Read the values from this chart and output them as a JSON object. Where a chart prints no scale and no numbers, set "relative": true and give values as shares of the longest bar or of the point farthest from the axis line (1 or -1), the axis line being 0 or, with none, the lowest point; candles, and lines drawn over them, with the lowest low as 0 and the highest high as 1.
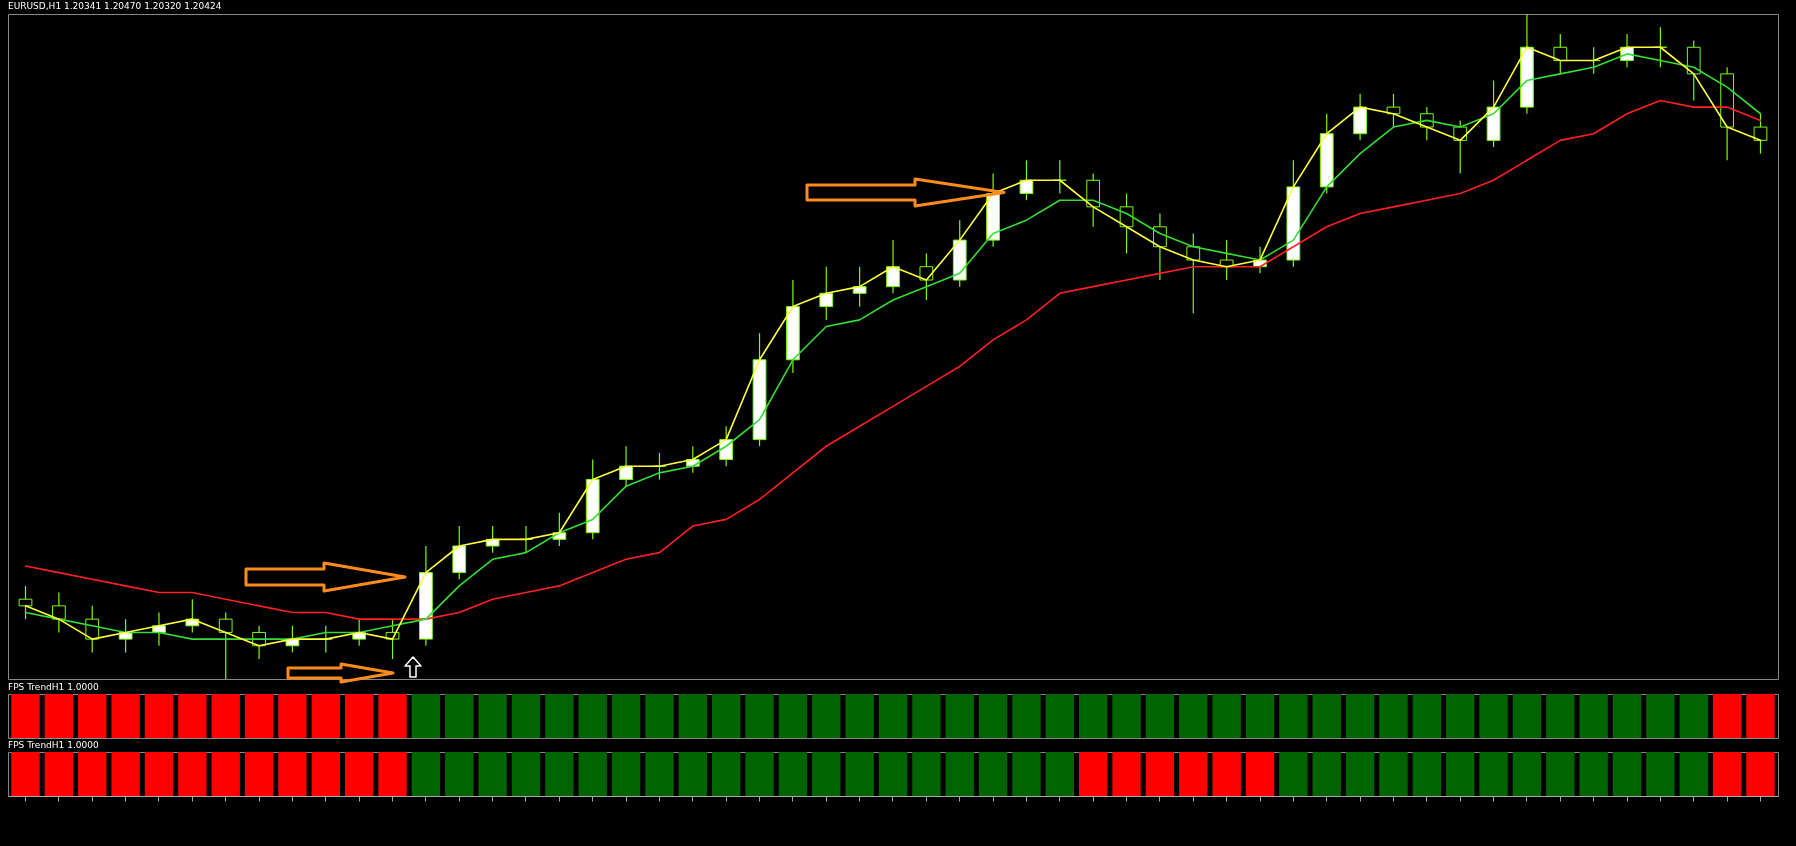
{
  "chart_data": [
    {
      "type": "candlestick",
      "title": "EURUSD,H1  1.20341 1.20470 1.20320 1.20424",
      "relative": true,
      "color": "#7cfc00",
      "categories": [
        null,
        null,
        null,
        null,
        null,
        null,
        null,
        null,
        null,
        null,
        null,
        null,
        null,
        null,
        null,
        null,
        null,
        null,
        null,
        null,
        null,
        null,
        null,
        null,
        null,
        null,
        null,
        null,
        null,
        null,
        null,
        null,
        null,
        null,
        null,
        null,
        null,
        null,
        null,
        null,
        null,
        null,
        null,
        null,
        null,
        null,
        null,
        null,
        null,
        null,
        null,
        null,
        null
      ],
      "ohlc": [
        [
          0.12,
          0.14,
          0.09,
          0.11
        ],
        [
          0.11,
          0.13,
          0.07,
          0.09
        ],
        [
          0.09,
          0.11,
          0.04,
          0.06
        ],
        [
          0.06,
          0.09,
          0.04,
          0.07
        ],
        [
          0.07,
          0.1,
          0.05,
          0.08
        ],
        [
          0.08,
          0.12,
          0.07,
          0.09
        ],
        [
          0.09,
          0.1,
          0.0,
          0.07
        ],
        [
          0.07,
          0.08,
          0.03,
          0.05
        ],
        [
          0.05,
          0.08,
          0.04,
          0.06
        ],
        [
          0.06,
          0.08,
          0.04,
          0.06
        ],
        [
          0.06,
          0.09,
          0.05,
          0.07
        ],
        [
          0.07,
          0.09,
          0.03,
          0.06
        ],
        [
          0.06,
          0.2,
          0.05,
          0.16
        ],
        [
          0.16,
          0.23,
          0.15,
          0.2
        ],
        [
          0.2,
          0.23,
          0.19,
          0.21
        ],
        [
          0.21,
          0.23,
          0.19,
          0.21
        ],
        [
          0.21,
          0.25,
          0.2,
          0.22
        ],
        [
          0.22,
          0.33,
          0.21,
          0.3
        ],
        [
          0.3,
          0.35,
          0.29,
          0.32
        ],
        [
          0.32,
          0.34,
          0.3,
          0.32
        ],
        [
          0.32,
          0.35,
          0.31,
          0.33
        ],
        [
          0.33,
          0.38,
          0.32,
          0.36
        ],
        [
          0.36,
          0.52,
          0.35,
          0.48
        ],
        [
          0.48,
          0.6,
          0.46,
          0.56
        ],
        [
          0.56,
          0.62,
          0.54,
          0.58
        ],
        [
          0.58,
          0.62,
          0.56,
          0.59
        ],
        [
          0.59,
          0.66,
          0.58,
          0.62
        ],
        [
          0.62,
          0.64,
          0.57,
          0.6
        ],
        [
          0.6,
          0.69,
          0.59,
          0.66
        ],
        [
          0.66,
          0.76,
          0.65,
          0.73
        ],
        [
          0.73,
          0.78,
          0.72,
          0.75
        ],
        [
          0.75,
          0.78,
          0.73,
          0.75
        ],
        [
          0.75,
          0.76,
          0.68,
          0.71
        ],
        [
          0.71,
          0.73,
          0.64,
          0.68
        ],
        [
          0.68,
          0.7,
          0.6,
          0.65
        ],
        [
          0.65,
          0.67,
          0.55,
          0.63
        ],
        [
          0.63,
          0.66,
          0.6,
          0.62
        ],
        [
          0.62,
          0.65,
          0.61,
          0.63
        ],
        [
          0.63,
          0.78,
          0.62,
          0.74
        ],
        [
          0.74,
          0.85,
          0.73,
          0.82
        ],
        [
          0.82,
          0.88,
          0.81,
          0.86
        ],
        [
          0.86,
          0.88,
          0.83,
          0.85
        ],
        [
          0.85,
          0.86,
          0.81,
          0.83
        ],
        [
          0.83,
          0.84,
          0.76,
          0.81
        ],
        [
          0.81,
          0.9,
          0.8,
          0.86
        ],
        [
          0.86,
          1.0,
          0.85,
          0.95
        ],
        [
          0.95,
          0.97,
          0.91,
          0.93
        ],
        [
          0.93,
          0.95,
          0.91,
          0.93
        ],
        [
          0.93,
          0.97,
          0.92,
          0.95
        ],
        [
          0.95,
          0.98,
          0.92,
          0.95
        ],
        [
          0.95,
          0.96,
          0.87,
          0.91
        ],
        [
          0.91,
          0.92,
          0.78,
          0.83
        ],
        [
          0.83,
          0.85,
          0.79,
          0.81
        ]
      ],
      "series": [
        {
          "type": "line",
          "color": "#ff2020",
          "values": [
            0.17,
            0.16,
            0.15,
            0.14,
            0.13,
            0.13,
            0.12,
            0.11,
            0.1,
            0.1,
            0.09,
            0.09,
            0.09,
            0.1,
            0.12,
            0.13,
            0.14,
            0.16,
            0.18,
            0.19,
            0.23,
            0.24,
            0.27,
            0.31,
            0.35,
            0.38,
            0.41,
            0.44,
            0.47,
            0.51,
            0.54,
            0.58,
            0.59,
            0.6,
            0.61,
            0.62,
            0.62,
            0.62,
            0.65,
            0.68,
            0.7,
            0.71,
            0.72,
            0.73,
            0.75,
            0.78,
            0.81,
            0.82,
            0.85,
            0.87,
            0.86,
            0.86,
            0.84
          ]
        },
        {
          "type": "line",
          "color": "#33dd33",
          "values": [
            0.1,
            0.09,
            0.08,
            0.07,
            0.07,
            0.06,
            0.06,
            0.06,
            0.06,
            0.07,
            0.07,
            0.08,
            0.09,
            0.14,
            0.18,
            0.19,
            0.22,
            0.24,
            0.29,
            0.31,
            0.32,
            0.35,
            0.39,
            0.48,
            0.53,
            0.54,
            0.57,
            0.59,
            0.61,
            0.67,
            0.69,
            0.72,
            0.72,
            0.7,
            0.67,
            0.65,
            0.64,
            0.63,
            0.66,
            0.74,
            0.79,
            0.83,
            0.84,
            0.83,
            0.85,
            0.9,
            0.91,
            0.92,
            0.94,
            0.93,
            0.92,
            0.89,
            0.85
          ]
        },
        {
          "type": "line",
          "color": "#ffff40",
          "values": [
            0.11,
            0.09,
            0.06,
            0.07,
            0.08,
            0.09,
            0.07,
            0.05,
            0.06,
            0.06,
            0.07,
            0.06,
            0.16,
            0.2,
            0.21,
            0.21,
            0.22,
            0.3,
            0.32,
            0.32,
            0.33,
            0.36,
            0.48,
            0.56,
            0.58,
            0.59,
            0.62,
            0.6,
            0.66,
            0.73,
            0.75,
            0.75,
            0.71,
            0.68,
            0.65,
            0.63,
            0.62,
            0.63,
            0.74,
            0.82,
            0.86,
            0.85,
            0.83,
            0.81,
            0.86,
            0.95,
            0.93,
            0.93,
            0.95,
            0.95,
            0.91,
            0.83,
            0.81
          ]
        }
      ]
    },
    {
      "type": "bar",
      "title": "FPS TrendH1 1.0000",
      "relative": true,
      "categories": [
        null,
        null,
        null,
        null,
        null,
        null,
        null,
        null,
        null,
        null,
        null,
        null,
        null,
        null,
        null,
        null,
        null,
        null,
        null,
        null,
        null,
        null,
        null,
        null,
        null,
        null,
        null,
        null,
        null,
        null,
        null,
        null,
        null,
        null,
        null,
        null,
        null,
        null,
        null,
        null,
        null,
        null,
        null,
        null,
        null,
        null,
        null,
        null,
        null,
        null,
        null,
        null,
        null
      ],
      "values": [
        1,
        1,
        1,
        1,
        1,
        1,
        1,
        1,
        1,
        1,
        1,
        1,
        1,
        1,
        1,
        1,
        1,
        1,
        1,
        1,
        1,
        1,
        1,
        1,
        1,
        1,
        1,
        1,
        1,
        1,
        1,
        1,
        1,
        1,
        1,
        1,
        1,
        1,
        1,
        1,
        1,
        1,
        1,
        1,
        1,
        1,
        1,
        1,
        1,
        1,
        1,
        1,
        1
      ],
      "colors": [
        "#ff0000",
        "#ff0000",
        "#ff0000",
        "#ff0000",
        "#ff0000",
        "#ff0000",
        "#ff0000",
        "#ff0000",
        "#ff0000",
        "#ff0000",
        "#ff0000",
        "#ff0000",
        "#006400",
        "#006400",
        "#006400",
        "#006400",
        "#006400",
        "#006400",
        "#006400",
        "#006400",
        "#006400",
        "#006400",
        "#006400",
        "#006400",
        "#006400",
        "#006400",
        "#006400",
        "#006400",
        "#006400",
        "#006400",
        "#006400",
        "#006400",
        "#006400",
        "#006400",
        "#006400",
        "#006400",
        "#006400",
        "#006400",
        "#006400",
        "#006400",
        "#006400",
        "#006400",
        "#006400",
        "#006400",
        "#006400",
        "#006400",
        "#006400",
        "#006400",
        "#006400",
        "#006400",
        "#006400",
        "#ff0000",
        "#ff0000"
      ]
    },
    {
      "type": "bar",
      "title": "FPS TrendH1 1.0000",
      "relative": true,
      "categories": [
        null,
        null,
        null,
        null,
        null,
        null,
        null,
        null,
        null,
        null,
        null,
        null,
        null,
        null,
        null,
        null,
        null,
        null,
        null,
        null,
        null,
        null,
        null,
        null,
        null,
        null,
        null,
        null,
        null,
        null,
        null,
        null,
        null,
        null,
        null,
        null,
        null,
        null,
        null,
        null,
        null,
        null,
        null,
        null,
        null,
        null,
        null,
        null,
        null,
        null,
        null,
        null,
        null
      ],
      "values": [
        1,
        1,
        1,
        1,
        1,
        1,
        1,
        1,
        1,
        1,
        1,
        1,
        1,
        1,
        1,
        1,
        1,
        1,
        1,
        1,
        1,
        1,
        1,
        1,
        1,
        1,
        1,
        1,
        1,
        1,
        1,
        1,
        1,
        1,
        1,
        1,
        1,
        1,
        1,
        1,
        1,
        1,
        1,
        1,
        1,
        1,
        1,
        1,
        1,
        1,
        1,
        1,
        1
      ],
      "colors": [
        "#ff0000",
        "#ff0000",
        "#ff0000",
        "#ff0000",
        "#ff0000",
        "#ff0000",
        "#ff0000",
        "#ff0000",
        "#ff0000",
        "#ff0000",
        "#ff0000",
        "#ff0000",
        "#006400",
        "#006400",
        "#006400",
        "#006400",
        "#006400",
        "#006400",
        "#006400",
        "#006400",
        "#006400",
        "#006400",
        "#006400",
        "#006400",
        "#006400",
        "#006400",
        "#006400",
        "#006400",
        "#006400",
        "#006400",
        "#006400",
        "#006400",
        "#ff0000",
        "#ff0000",
        "#ff0000",
        "#ff0000",
        "#ff0000",
        "#ff0000",
        "#006400",
        "#006400",
        "#006400",
        "#006400",
        "#006400",
        "#006400",
        "#006400",
        "#006400",
        "#006400",
        "#006400",
        "#006400",
        "#006400",
        "#006400",
        "#ff0000",
        "#ff0000"
      ]
    }
  ]
}
